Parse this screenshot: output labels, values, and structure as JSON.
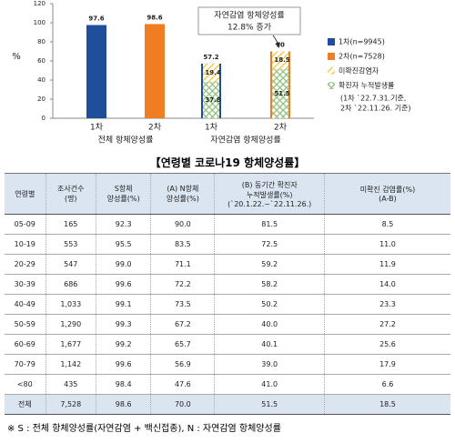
{
  "chart_data": {
    "type": "bar",
    "y_label": "%",
    "categories": [
      "1차",
      "2차",
      "1차",
      "2차"
    ],
    "groups": [
      "전체 항체양성률",
      "자연감염 항체양성률"
    ],
    "series": [
      {
        "name": "1차(n=9945)",
        "color": "#1f4e9a",
        "values": [
          97.6,
          null,
          57.2,
          null
        ]
      },
      {
        "name": "2차(n=7528)",
        "color": "#f07d22",
        "values": [
          null,
          98.6,
          null,
          70
        ]
      },
      {
        "name": "미확진감염자",
        "color": "#f2c12e",
        "hatch": true,
        "values": [
          null,
          null,
          19.4,
          18.5
        ]
      },
      {
        "name": "확진자 누적발생률",
        "color": "#8fbf7a",
        "hatch": true,
        "values": [
          null,
          null,
          37.8,
          51.5
        ]
      }
    ],
    "legend_note": [
      "(1차 `22.7.31.기준,",
      "2차 `22.11.26. 기준)"
    ],
    "annotation": [
      "자연감염 항체양성률",
      "12.8% 증가"
    ],
    "ylim": [
      0,
      120
    ],
    "yticks": [
      0,
      20,
      40,
      60,
      80,
      100,
      120
    ]
  },
  "table": {
    "title": "【연령별 코로나19 항체양성률】",
    "header": [
      "연령별",
      "조사건수\n(명)",
      "S항체\n양성률(%)",
      "(A) N항체\n양성률(%)",
      "(B) 동기간 확진자\n누적발생률(%)\n(`20.1.22.~`22.11.26.)",
      "미확진 감염률(%)\n(A-B)"
    ],
    "rows": [
      [
        "05-09",
        "165",
        "92.3",
        "90.0",
        "81.5",
        "8.5"
      ],
      [
        "10-19",
        "553",
        "95.5",
        "83.5",
        "72.5",
        "11.0"
      ],
      [
        "20-29",
        "547",
        "99.0",
        "71.1",
        "59.2",
        "11.9"
      ],
      [
        "30-39",
        "686",
        "99.6",
        "72.2",
        "58.2",
        "14.0"
      ],
      [
        "40-49",
        "1,033",
        "99.1",
        "73.5",
        "50.2",
        "23.3"
      ],
      [
        "50-59",
        "1,290",
        "99.3",
        "67.2",
        "40.0",
        "27.2"
      ],
      [
        "60-69",
        "1,677",
        "99.2",
        "65.7",
        "40.1",
        "25.6"
      ],
      [
        "70-79",
        "1,142",
        "99.6",
        "56.9",
        "39.0",
        "17.9"
      ],
      [
        "<80",
        "435",
        "98.4",
        "47.6",
        "41.0",
        "6.6"
      ],
      [
        "전체",
        "7,528",
        "98.6",
        "70.0",
        "51.5",
        "18.5"
      ]
    ],
    "footnote": "※ S : 전체 항체양성률(자연감염 + 백신접종), N : 자연감염 항체양성률"
  }
}
